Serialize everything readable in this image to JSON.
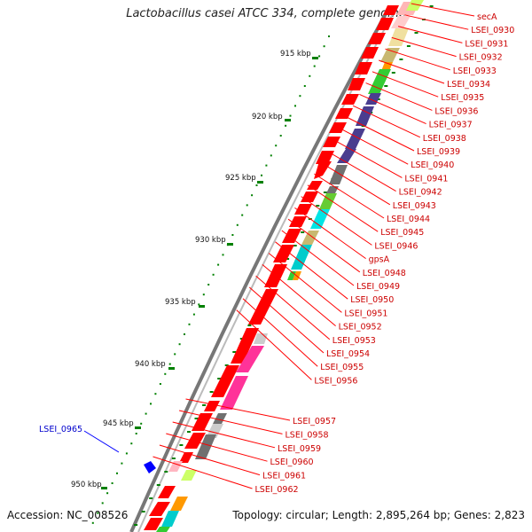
{
  "title": "Lactobacillus casei ATCC 334, complete genome",
  "accession": "Accession: NC_008526",
  "topology": "Topology: circular; Length: 2,895,264 bp; Genes: 2,823",
  "colors": {
    "backbone": "#808080",
    "gene_default": "#ff0000",
    "label_red": "#cc0000",
    "label_blue": "#0000cc",
    "tick_green": "#008000",
    "purple": "#4a3d8f",
    "cyan": "#00cccc",
    "lime": "#33cc33",
    "pink": "#ff3399",
    "khaki": "#c8b870",
    "dark_gray": "#707070"
  },
  "kbp_labels": [
    "915 kbp",
    "920 kbp",
    "925 kbp",
    "930 kbp",
    "935 kbp",
    "940 kbp",
    "945 kbp",
    "950 kbp"
  ],
  "gene_labels_right": [
    "secA",
    "LSEI_0930",
    "LSEI_0931",
    "LSEI_0932",
    "LSEI_0933",
    "LSEI_0934",
    "LSEI_0935",
    "LSEI_0936",
    "LSEI_0937",
    "LSEI_0938",
    "LSEI_0939",
    "LSEI_0940",
    "LSEI_0941",
    "LSEI_0942",
    "LSEI_0943",
    "LSEI_0944",
    "LSEI_0945",
    "LSEI_0946",
    "gpsA",
    "LSEI_0948",
    "LSEI_0949",
    "LSEI_0950",
    "LSEI_0951",
    "LSEI_0952",
    "LSEI_0953",
    "LSEI_0954",
    "LSEI_0955",
    "LSEI_0956",
    "LSEI_0957",
    "LSEI_0958",
    "LSEI_0959",
    "LSEI_0960",
    "LSEI_0961",
    "LSEI_0962"
  ],
  "gene_label_left": "LSEI_0965"
}
